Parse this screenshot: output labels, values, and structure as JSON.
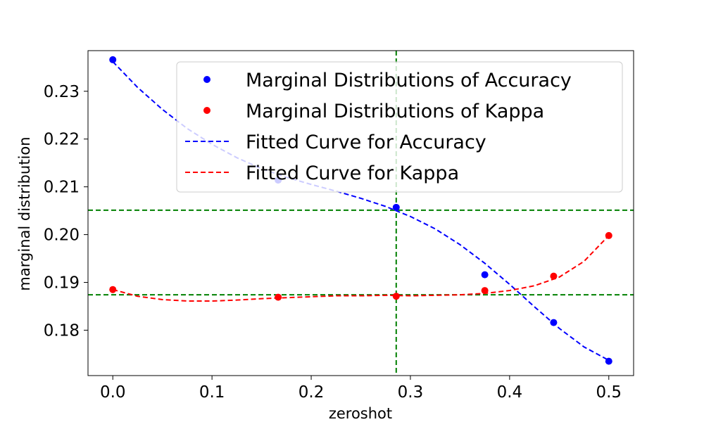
{
  "chart_data": {
    "type": "scatter",
    "xlabel": "zeroshot",
    "ylabel": "marginal distribution",
    "xlim": [
      -0.025,
      0.525
    ],
    "ylim": [
      0.1705,
      0.2385
    ],
    "x_ticks": [
      0.0,
      0.1,
      0.2,
      0.3,
      0.4,
      0.5
    ],
    "x_tick_labels": [
      "0.0",
      "0.1",
      "0.2",
      "0.3",
      "0.4",
      "0.5"
    ],
    "y_ticks": [
      0.18,
      0.19,
      0.2,
      0.21,
      0.22,
      0.23
    ],
    "y_tick_labels": [
      "0.18",
      "0.19",
      "0.20",
      "0.21",
      "0.22",
      "0.23"
    ],
    "legend_position": "upper-right",
    "series": [
      {
        "name": "Marginal Distributions of Accuracy",
        "kind": "scatter",
        "color": "#0000ff",
        "x": [
          0.0,
          0.1667,
          0.2857,
          0.375,
          0.4444,
          0.5
        ],
        "y": [
          0.2366,
          0.2114,
          0.2057,
          0.1916,
          0.1816,
          0.1735
        ]
      },
      {
        "name": "Marginal Distributions of Kappa",
        "kind": "scatter",
        "color": "#ff0000",
        "x": [
          0.0,
          0.1667,
          0.2857,
          0.375,
          0.4444,
          0.5
        ],
        "y": [
          0.1885,
          0.1869,
          0.1871,
          0.1883,
          0.1913,
          0.1998
        ]
      },
      {
        "name": "Fitted Curve for Accuracy",
        "kind": "line",
        "dash": "dashed",
        "color": "#0000ff",
        "x": [
          0.0,
          0.025,
          0.05,
          0.075,
          0.1,
          0.125,
          0.15,
          0.175,
          0.2,
          0.225,
          0.25,
          0.275,
          0.3,
          0.325,
          0.35,
          0.375,
          0.4,
          0.425,
          0.45,
          0.475,
          0.5
        ],
        "y": [
          0.2362,
          0.2308,
          0.2262,
          0.2222,
          0.2189,
          0.2161,
          0.2138,
          0.212,
          0.2105,
          0.2091,
          0.2076,
          0.2059,
          0.2038,
          0.2012,
          0.1979,
          0.194,
          0.1896,
          0.1849,
          0.1804,
          0.1765,
          0.1737
        ]
      },
      {
        "name": "Fitted Curve for Kappa",
        "kind": "line",
        "dash": "dashed",
        "color": "#ff0000",
        "x": [
          0.0,
          0.025,
          0.05,
          0.075,
          0.1,
          0.125,
          0.15,
          0.175,
          0.2,
          0.225,
          0.25,
          0.275,
          0.3,
          0.325,
          0.35,
          0.375,
          0.4,
          0.425,
          0.45,
          0.475,
          0.5
        ],
        "y": [
          0.1885,
          0.1871,
          0.1864,
          0.1861,
          0.1861,
          0.1863,
          0.1866,
          0.1868,
          0.187,
          0.1872,
          0.1872,
          0.1873,
          0.1872,
          0.1873,
          0.1874,
          0.1877,
          0.1883,
          0.1893,
          0.1911,
          0.1944,
          0.1998
        ]
      }
    ],
    "reference_lines": {
      "color": "#008000",
      "vertical_x": [
        0.2857
      ],
      "horizontal_y": [
        0.2051,
        0.1874
      ]
    }
  }
}
